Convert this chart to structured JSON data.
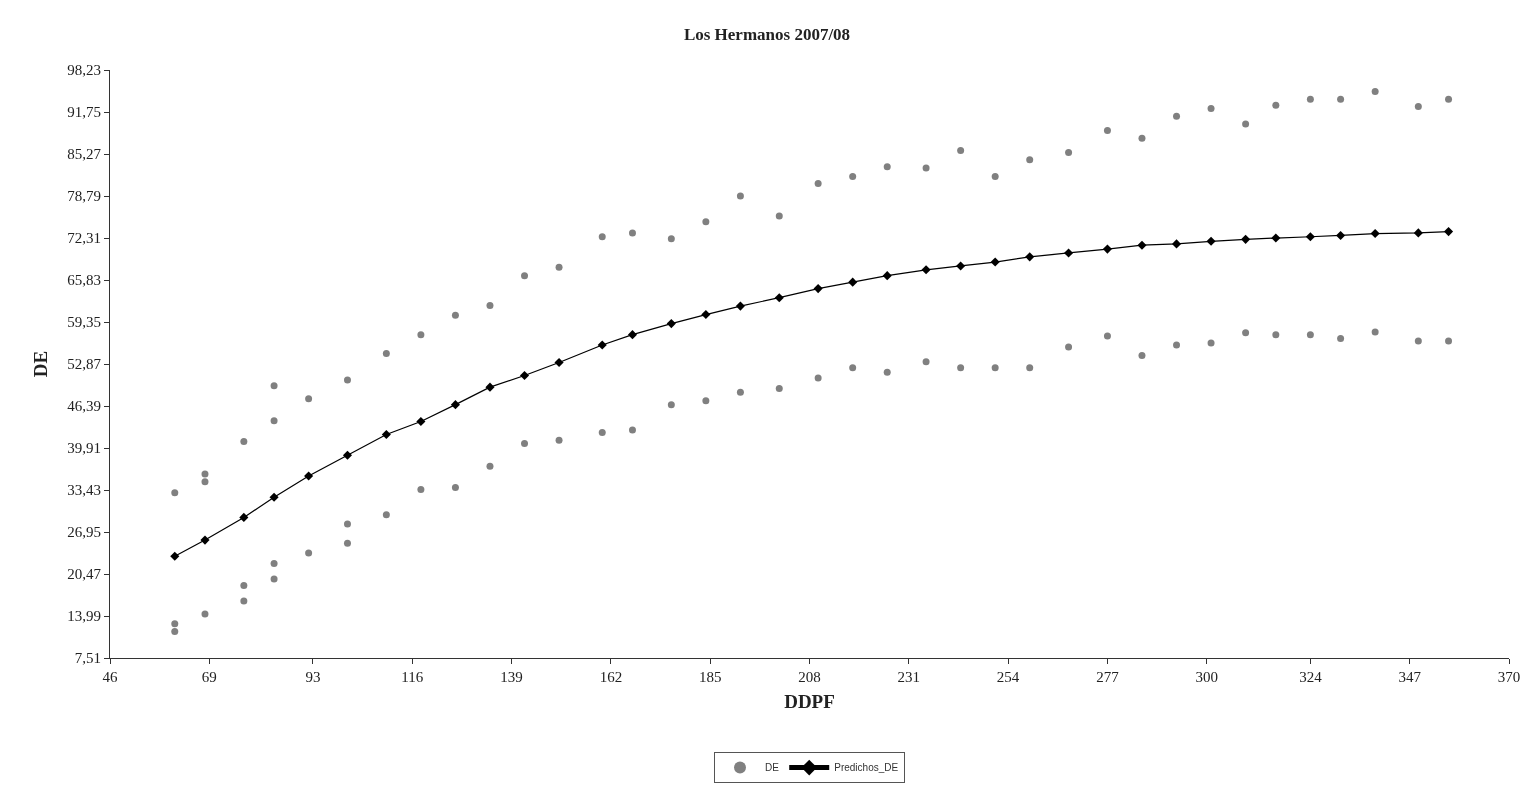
{
  "chart_data": {
    "type": "scatter",
    "title": "Los Hermanos 2007/08",
    "xlabel": "DDPF",
    "ylabel": "DE",
    "xlim": [
      46,
      370
    ],
    "xticks": [
      46,
      69,
      93,
      116,
      139,
      162,
      185,
      208,
      231,
      254,
      277,
      300,
      324,
      347,
      370
    ],
    "ylim": [
      7.51,
      98.23
    ],
    "yticks": [
      {
        "value": 7.51,
        "label": "7,51"
      },
      {
        "value": 13.99,
        "label": "13,99"
      },
      {
        "value": 20.47,
        "label": "20,47"
      },
      {
        "value": 26.95,
        "label": "26,95"
      },
      {
        "value": 33.43,
        "label": "33,43"
      },
      {
        "value": 39.91,
        "label": "39,91"
      },
      {
        "value": 46.39,
        "label": "46,39"
      },
      {
        "value": 52.87,
        "label": "52,87"
      },
      {
        "value": 59.35,
        "label": "59,35"
      },
      {
        "value": 65.83,
        "label": "65,83"
      },
      {
        "value": 72.31,
        "label": "72,31"
      },
      {
        "value": 78.79,
        "label": "78,79"
      },
      {
        "value": 85.27,
        "label": "85,27"
      },
      {
        "value": 91.75,
        "label": "91,75"
      },
      {
        "value": 98.23,
        "label": "98,23"
      }
    ],
    "grid": false,
    "legend": "bottom",
    "series": [
      {
        "name": "DE",
        "type": "scatter",
        "marker": "circle",
        "color": "#808080",
        "x": [
          61,
          61,
          61,
          68,
          68,
          68,
          77,
          77,
          77,
          84,
          84,
          84,
          84,
          92,
          92,
          101,
          101,
          101,
          110,
          110,
          118,
          118,
          126,
          126,
          134,
          134,
          142,
          142,
          150,
          150,
          160,
          160,
          167,
          167,
          176,
          176,
          184,
          184,
          192,
          192,
          201,
          201,
          210,
          210,
          218,
          218,
          226,
          226,
          235,
          235,
          243,
          243,
          251,
          251,
          259,
          259,
          268,
          268,
          277,
          277,
          285,
          285,
          293,
          293,
          301,
          301,
          309,
          309,
          316,
          316,
          324,
          324,
          331,
          331,
          339,
          339,
          349,
          349,
          356,
          356
        ],
        "values": [
          33.0,
          12.8,
          11.6,
          35.9,
          34.7,
          14.3,
          40.9,
          18.7,
          16.3,
          49.5,
          44.1,
          22.1,
          19.7,
          47.5,
          23.7,
          50.4,
          28.2,
          25.2,
          54.5,
          29.6,
          57.4,
          33.5,
          60.4,
          33.8,
          61.9,
          37.1,
          66.5,
          40.6,
          67.8,
          41.1,
          72.5,
          42.3,
          73.1,
          42.7,
          72.2,
          46.6,
          74.8,
          47.2,
          78.8,
          48.5,
          75.7,
          49.1,
          80.7,
          50.7,
          81.8,
          52.3,
          83.3,
          51.6,
          83.1,
          53.2,
          85.8,
          52.3,
          81.8,
          52.3,
          84.4,
          52.3,
          85.5,
          55.5,
          88.9,
          57.2,
          87.7,
          54.2,
          91.1,
          55.8,
          92.3,
          56.1,
          89.9,
          57.7,
          92.8,
          57.4,
          93.7,
          57.4,
          93.7,
          56.8,
          94.9,
          57.8,
          92.6,
          56.4,
          93.7,
          56.4
        ]
      },
      {
        "name": "Predichos_DE",
        "type": "line",
        "marker": "diamond",
        "line_style": "solid",
        "color": "#000000",
        "x": [
          61,
          68,
          77,
          84,
          92,
          101,
          110,
          118,
          126,
          134,
          142,
          150,
          160,
          167,
          176,
          184,
          192,
          201,
          210,
          218,
          226,
          235,
          243,
          251,
          259,
          268,
          277,
          285,
          293,
          301,
          309,
          316,
          324,
          331,
          339,
          349,
          356
        ],
        "values": [
          23.2,
          25.7,
          29.2,
          32.3,
          35.6,
          38.8,
          42.0,
          44.0,
          46.6,
          49.3,
          51.1,
          53.1,
          55.8,
          57.4,
          59.1,
          60.5,
          61.8,
          63.1,
          64.5,
          65.5,
          66.5,
          67.4,
          68.0,
          68.6,
          69.4,
          70.0,
          70.6,
          71.2,
          71.4,
          71.8,
          72.1,
          72.3,
          72.5,
          72.7,
          73.0,
          73.1,
          73.3
        ]
      }
    ]
  }
}
